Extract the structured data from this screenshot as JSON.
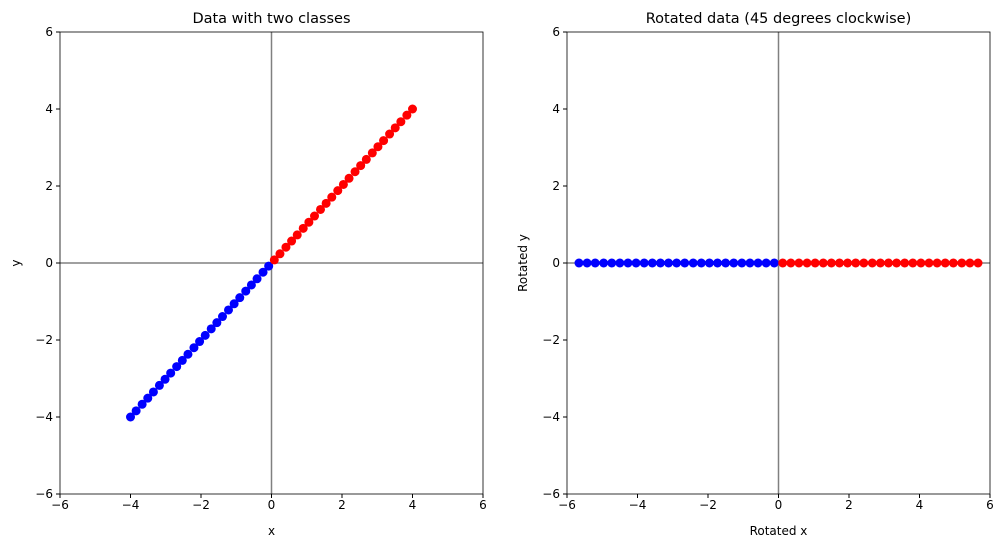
{
  "chart_data": [
    {
      "type": "scatter",
      "title": "Data with two classes",
      "x_label": "x",
      "y_label": "y",
      "xlim": [
        -6,
        6
      ],
      "ylim": [
        -6,
        6
      ],
      "xticks": [
        {
          "value": -6,
          "label": "−6"
        },
        {
          "value": -4,
          "label": "−4"
        },
        {
          "value": -2,
          "label": "−2"
        },
        0,
        2,
        4,
        6
      ],
      "yticks": [
        {
          "value": -6,
          "label": "−6"
        },
        {
          "value": -4,
          "label": "−4"
        },
        {
          "value": -2,
          "label": "−2"
        },
        0,
        2,
        4,
        6
      ],
      "series": [
        {
          "color": "#0000ff",
          "x": [
            -4.0,
            -3.84,
            -3.67,
            -3.51,
            -3.35,
            -3.18,
            -3.02,
            -2.86,
            -2.69,
            -2.53,
            -2.37,
            -2.2,
            -2.04,
            -1.88,
            -1.71,
            -1.55,
            -1.39,
            -1.22,
            -1.06,
            -0.9,
            -0.73,
            -0.57,
            -0.41,
            -0.24,
            -0.08
          ],
          "values": [
            -4.0,
            -3.84,
            -3.67,
            -3.51,
            -3.35,
            -3.18,
            -3.02,
            -2.86,
            -2.69,
            -2.53,
            -2.37,
            -2.2,
            -2.04,
            -1.88,
            -1.71,
            -1.55,
            -1.39,
            -1.22,
            -1.06,
            -0.9,
            -0.73,
            -0.57,
            -0.41,
            -0.24,
            -0.08
          ]
        },
        {
          "color": "#ff0000",
          "x": [
            0.08,
            0.24,
            0.41,
            0.57,
            0.73,
            0.9,
            1.06,
            1.22,
            1.39,
            1.55,
            1.71,
            1.88,
            2.04,
            2.2,
            2.37,
            2.53,
            2.69,
            2.86,
            3.02,
            3.18,
            3.35,
            3.51,
            3.67,
            3.84,
            4.0
          ],
          "values": [
            0.08,
            0.24,
            0.41,
            0.57,
            0.73,
            0.9,
            1.06,
            1.22,
            1.39,
            1.55,
            1.71,
            1.88,
            2.04,
            2.2,
            2.37,
            2.53,
            2.69,
            2.86,
            3.02,
            3.18,
            3.35,
            3.51,
            3.67,
            3.84,
            4.0
          ]
        }
      ]
    },
    {
      "type": "scatter",
      "title": "Rotated data (45 degrees clockwise)",
      "x_label": "Rotated x",
      "y_label": "Rotated y",
      "xlim": [
        -6,
        6
      ],
      "ylim": [
        -6,
        6
      ],
      "xticks": [
        {
          "value": -6,
          "label": "−6"
        },
        {
          "value": -4,
          "label": "−4"
        },
        {
          "value": -2,
          "label": "−2"
        },
        0,
        2,
        4,
        6
      ],
      "yticks": [
        {
          "value": -6,
          "label": "−6"
        },
        {
          "value": -4,
          "label": "−4"
        },
        {
          "value": -2,
          "label": "−2"
        },
        0,
        2,
        4,
        6
      ],
      "series": [
        {
          "color": "#0000ff",
          "x": [
            -5.66,
            -5.43,
            -5.2,
            -4.96,
            -4.73,
            -4.5,
            -4.27,
            -4.04,
            -3.81,
            -3.58,
            -3.35,
            -3.12,
            -2.89,
            -2.66,
            -2.42,
            -2.19,
            -1.96,
            -1.73,
            -1.5,
            -1.27,
            -1.04,
            -0.81,
            -0.58,
            -0.35,
            -0.12
          ],
          "values": [
            0,
            0,
            0,
            0,
            0,
            0,
            0,
            0,
            0,
            0,
            0,
            0,
            0,
            0,
            0,
            0,
            0,
            0,
            0,
            0,
            0,
            0,
            0,
            0,
            0
          ]
        },
        {
          "color": "#ff0000",
          "x": [
            0.12,
            0.35,
            0.58,
            0.81,
            1.04,
            1.27,
            1.5,
            1.73,
            1.96,
            2.19,
            2.42,
            2.66,
            2.89,
            3.12,
            3.35,
            3.58,
            3.81,
            4.04,
            4.27,
            4.5,
            4.73,
            4.96,
            5.2,
            5.43,
            5.66
          ],
          "values": [
            0,
            0,
            0,
            0,
            0,
            0,
            0,
            0,
            0,
            0,
            0,
            0,
            0,
            0,
            0,
            0,
            0,
            0,
            0,
            0,
            0,
            0,
            0,
            0,
            0
          ]
        }
      ]
    }
  ]
}
